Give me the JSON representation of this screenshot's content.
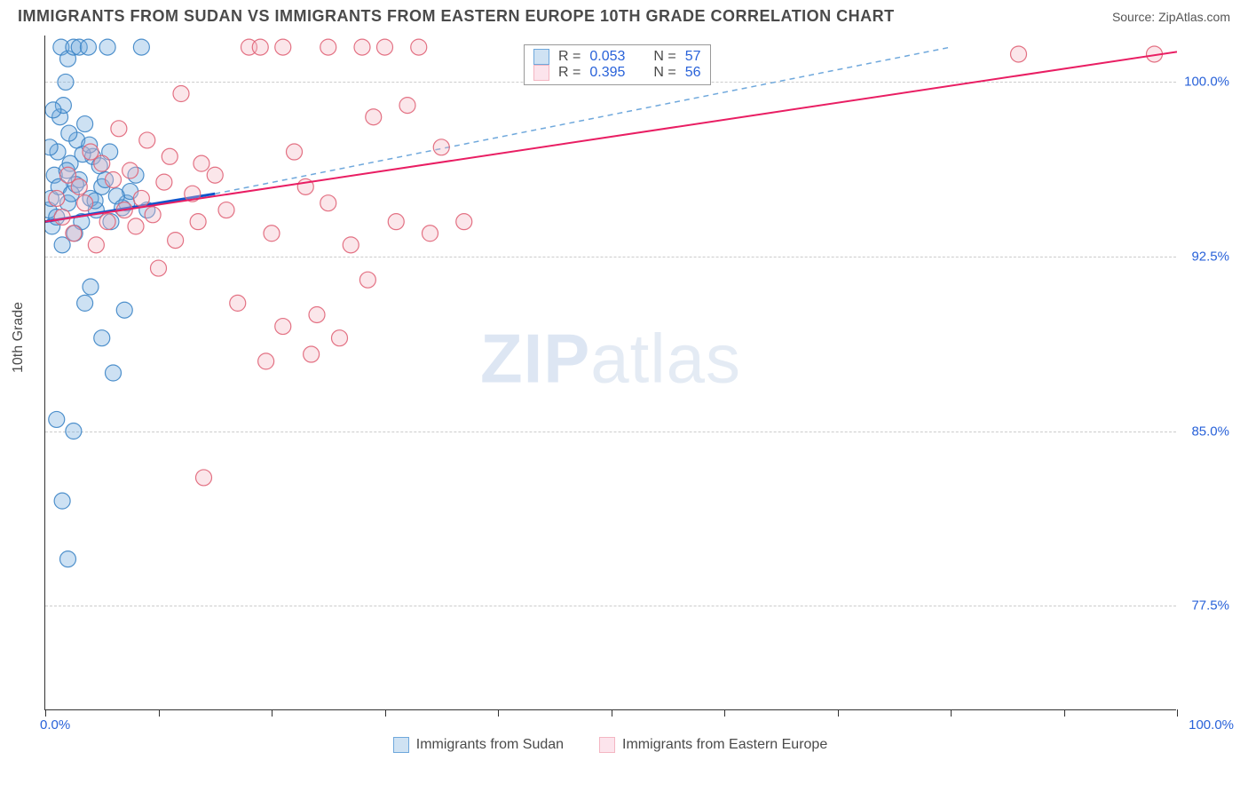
{
  "title": "IMMIGRANTS FROM SUDAN VS IMMIGRANTS FROM EASTERN EUROPE 10TH GRADE CORRELATION CHART",
  "source": "Source: ZipAtlas.com",
  "watermark_a": "ZIP",
  "watermark_b": "atlas",
  "ylabel": "10th Grade",
  "chart": {
    "type": "scatter",
    "background_color": "#ffffff",
    "grid_color": "#cccccc",
    "axis_color": "#333333",
    "xlim": [
      0,
      100
    ],
    "ylim": [
      73,
      102
    ],
    "xtick_positions": [
      0,
      10,
      20,
      30,
      40,
      50,
      60,
      70,
      80,
      90,
      100
    ],
    "xtick_labels_shown": {
      "0": "0.0%",
      "100": "100.0%"
    },
    "ytick_positions": [
      77.5,
      85.0,
      92.5,
      100.0
    ],
    "ytick_labels": [
      "77.5%",
      "85.0%",
      "92.5%",
      "100.0%"
    ],
    "marker_radius": 9,
    "marker_opacity": 0.35,
    "marker_stroke_opacity": 0.9,
    "label_color": "#2962d9",
    "text_color": "#4a4a4a",
    "series": [
      {
        "name": "Immigrants from Sudan",
        "color_fill": "#6fa8dc",
        "color_stroke": "#3d85c6",
        "R": "0.053",
        "N": "57",
        "trend_solid": {
          "x1": 0,
          "y1": 94.0,
          "x2": 15,
          "y2": 95.2,
          "width": 3,
          "color": "#1155cc"
        },
        "trend_dash": {
          "x1": 15,
          "y1": 95.2,
          "x2": 80,
          "y2": 101.5,
          "color": "#6fa8dc"
        },
        "points": [
          [
            0.3,
            94.5
          ],
          [
            0.5,
            95.0
          ],
          [
            0.6,
            93.8
          ],
          [
            0.8,
            96.0
          ],
          [
            1.0,
            94.2
          ],
          [
            1.1,
            97.0
          ],
          [
            1.2,
            95.5
          ],
          [
            1.3,
            98.5
          ],
          [
            1.4,
            101.5
          ],
          [
            1.5,
            93.0
          ],
          [
            1.6,
            99.0
          ],
          [
            1.8,
            100.0
          ],
          [
            2.0,
            101.0
          ],
          [
            2.0,
            94.8
          ],
          [
            2.2,
            96.5
          ],
          [
            2.3,
            95.2
          ],
          [
            2.5,
            101.5
          ],
          [
            2.6,
            93.5
          ],
          [
            2.8,
            97.5
          ],
          [
            3.0,
            101.5
          ],
          [
            3.0,
            95.8
          ],
          [
            3.2,
            94.0
          ],
          [
            3.5,
            98.2
          ],
          [
            3.5,
            90.5
          ],
          [
            3.8,
            101.5
          ],
          [
            4.0,
            95.0
          ],
          [
            4.0,
            91.2
          ],
          [
            4.2,
            96.8
          ],
          [
            4.5,
            94.5
          ],
          [
            5.0,
            89.0
          ],
          [
            5.0,
            95.5
          ],
          [
            5.5,
            101.5
          ],
          [
            5.8,
            94.0
          ],
          [
            6.0,
            87.5
          ],
          [
            1.0,
            85.5
          ],
          [
            2.5,
            85.0
          ],
          [
            1.5,
            82.0
          ],
          [
            2.0,
            79.5
          ],
          [
            7.0,
            90.2
          ],
          [
            7.2,
            94.8
          ],
          [
            7.5,
            95.3
          ],
          [
            8.0,
            96.0
          ],
          [
            8.5,
            101.5
          ],
          [
            9.0,
            94.5
          ],
          [
            0.4,
            97.2
          ],
          [
            0.7,
            98.8
          ],
          [
            1.9,
            96.2
          ],
          [
            2.1,
            97.8
          ],
          [
            2.7,
            95.6
          ],
          [
            3.3,
            96.9
          ],
          [
            3.9,
            97.3
          ],
          [
            4.4,
            94.9
          ],
          [
            4.8,
            96.4
          ],
          [
            5.3,
            95.8
          ],
          [
            5.7,
            97.0
          ],
          [
            6.3,
            95.1
          ],
          [
            6.8,
            94.6
          ]
        ]
      },
      {
        "name": "Immigrants from Eastern Europe",
        "color_fill": "#f4b6c2",
        "color_stroke": "#e06377",
        "R": "0.395",
        "N": "56",
        "trend_solid": {
          "x1": 0,
          "y1": 94.0,
          "x2": 100,
          "y2": 101.3,
          "width": 2,
          "color": "#e91e63"
        },
        "points": [
          [
            1.0,
            95.0
          ],
          [
            1.5,
            94.2
          ],
          [
            2.0,
            96.0
          ],
          [
            2.5,
            93.5
          ],
          [
            3.0,
            95.5
          ],
          [
            3.5,
            94.8
          ],
          [
            4.0,
            97.0
          ],
          [
            4.5,
            93.0
          ],
          [
            5.0,
            96.5
          ],
          [
            5.5,
            94.0
          ],
          [
            6.0,
            95.8
          ],
          [
            6.5,
            98.0
          ],
          [
            7.0,
            94.5
          ],
          [
            7.5,
            96.2
          ],
          [
            8.0,
            93.8
          ],
          [
            8.5,
            95.0
          ],
          [
            9.0,
            97.5
          ],
          [
            9.5,
            94.3
          ],
          [
            10.0,
            92.0
          ],
          [
            10.5,
            95.7
          ],
          [
            11.0,
            96.8
          ],
          [
            11.5,
            93.2
          ],
          [
            12.0,
            99.5
          ],
          [
            13.0,
            95.2
          ],
          [
            13.5,
            94.0
          ],
          [
            14.0,
            83.0
          ],
          [
            15.0,
            96.0
          ],
          [
            16.0,
            94.5
          ],
          [
            17.0,
            90.5
          ],
          [
            18.0,
            101.5
          ],
          [
            19.0,
            101.5
          ],
          [
            20.0,
            93.5
          ],
          [
            21.0,
            89.5
          ],
          [
            21.0,
            101.5
          ],
          [
            22.0,
            97.0
          ],
          [
            23.0,
            95.5
          ],
          [
            24.0,
            90.0
          ],
          [
            25.0,
            94.8
          ],
          [
            25.0,
            101.5
          ],
          [
            26.0,
            89.0
          ],
          [
            27.0,
            93.0
          ],
          [
            28.0,
            101.5
          ],
          [
            28.5,
            91.5
          ],
          [
            29.0,
            98.5
          ],
          [
            30.0,
            101.5
          ],
          [
            31.0,
            94.0
          ],
          [
            32.0,
            99.0
          ],
          [
            33.0,
            101.5
          ],
          [
            34.0,
            93.5
          ],
          [
            35.0,
            97.2
          ],
          [
            37.0,
            94.0
          ],
          [
            86.0,
            101.2
          ],
          [
            98.0,
            101.2
          ],
          [
            19.5,
            88.0
          ],
          [
            23.5,
            88.3
          ],
          [
            13.8,
            96.5
          ]
        ]
      }
    ]
  },
  "stats_box": {
    "rows": [
      {
        "swatch_fill": "#cfe2f3",
        "swatch_stroke": "#6fa8dc",
        "r_label": "R =",
        "r_val": "0.053",
        "n_label": "N =",
        "n_val": "57"
      },
      {
        "swatch_fill": "#fce4ec",
        "swatch_stroke": "#f4b6c2",
        "r_label": "R =",
        "r_val": "0.395",
        "n_label": "N =",
        "n_val": "56"
      }
    ]
  },
  "legend": [
    {
      "swatch_fill": "#cfe2f3",
      "swatch_stroke": "#6fa8dc",
      "label": "Immigrants from Sudan"
    },
    {
      "swatch_fill": "#fce4ec",
      "swatch_stroke": "#f4b6c2",
      "label": "Immigrants from Eastern Europe"
    }
  ]
}
